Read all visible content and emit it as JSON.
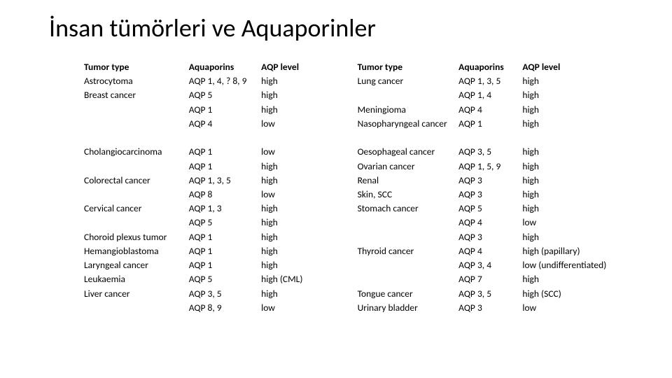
{
  "title": "İnsan tümörleri ve Aquaporinler",
  "left": {
    "headers": [
      "Tumor type",
      "Aquaporins",
      "AQP level"
    ],
    "rows": [
      [
        "Astrocytoma",
        "AQP 1, 4, ? 8, 9",
        "high"
      ],
      [
        "Breast cancer",
        "AQP 5",
        "high"
      ],
      [
        "",
        "AQP 1",
        "high"
      ],
      [
        "",
        "AQP 4",
        "low"
      ],
      [
        "",
        "",
        ""
      ],
      [
        "Cholangiocarcinoma",
        "AQP 1",
        "low"
      ],
      [
        "",
        "AQP 1",
        "high"
      ],
      [
        "Colorectal cancer",
        "AQP 1, 3, 5",
        "high"
      ],
      [
        "",
        "AQP 8",
        "low"
      ],
      [
        "Cervical cancer",
        "AQP 1, 3",
        "high"
      ],
      [
        "",
        "AQP 5",
        "high"
      ],
      [
        "Choroid plexus tumor",
        "AQP 1",
        "high"
      ],
      [
        "Hemangioblastoma",
        "AQP 1",
        "high"
      ],
      [
        "Laryngeal cancer",
        "AQP 1",
        "high"
      ],
      [
        "Leukaemia",
        "AQP 5",
        "high (CML)"
      ],
      [
        "Liver cancer",
        "AQP 3, 5",
        "high"
      ],
      [
        "",
        "AQP 8, 9",
        "low"
      ]
    ]
  },
  "right": {
    "headers": [
      "Tumor type",
      "Aquaporins",
      "AQP level"
    ],
    "rows": [
      [
        "Lung cancer",
        "AQP 1, 3, 5",
        "high"
      ],
      [
        "",
        "AQP 1, 4",
        "high"
      ],
      [
        "Meningioma",
        "AQP 4",
        "high"
      ],
      [
        "Nasopharyngeal cancer",
        "AQP 1",
        "high"
      ],
      [
        "",
        "",
        ""
      ],
      [
        "Oesophageal cancer",
        "AQP 3, 5",
        "high"
      ],
      [
        "Ovarian cancer",
        "AQP 1, 5, 9",
        "high"
      ],
      [
        "Renal",
        "AQP 3",
        "high"
      ],
      [
        "Skin, SCC",
        "AQP 3",
        "high"
      ],
      [
        "Stomach cancer",
        "AQP 5",
        "high"
      ],
      [
        "",
        "AQP 4",
        "low"
      ],
      [
        "",
        "AQP 3",
        "high"
      ],
      [
        "Thyroid cancer",
        "AQP 4",
        "high (papillary)"
      ],
      [
        "",
        "AQP 3, 4",
        "low (undifferentiated)"
      ],
      [
        "",
        "AQP 7",
        "high"
      ],
      [
        "Tongue cancer",
        "AQP 3, 5",
        "high (SCC)"
      ],
      [
        "Urinary bladder",
        "AQP 3",
        "low"
      ]
    ]
  }
}
